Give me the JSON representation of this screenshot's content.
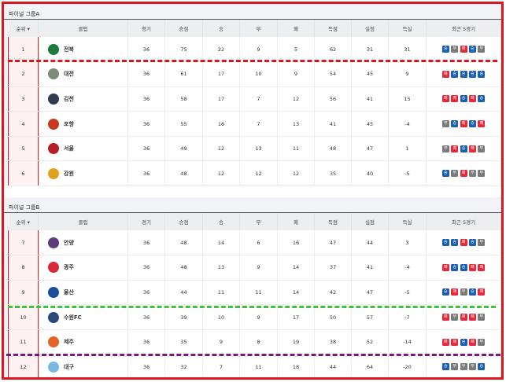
{
  "colors": {
    "frame": "#e0141e",
    "win": "#1a5fb4",
    "loss": "#e5283a",
    "draw": "#7a7a7a",
    "line_red": "#e0141e",
    "line_green": "#3cc43c",
    "line_purple": "#7a1a7a"
  },
  "columns": [
    "순위 ▾",
    "클럽",
    "경기",
    "승점",
    "승",
    "무",
    "패",
    "득점",
    "실점",
    "득실",
    "최근 5경기"
  ],
  "groups": [
    {
      "title": "파이널 그룹A",
      "rows": [
        {
          "rank": "1",
          "club": "전북",
          "logo": "#1d7a3a",
          "gp": "36",
          "pts": "75",
          "w": "22",
          "d": "9",
          "l": "5",
          "gf": "62",
          "ga": "31",
          "gd": "31",
          "form": [
            "승",
            "무",
            "패",
            "승",
            "무"
          ]
        },
        {
          "rank": "2",
          "club": "대전",
          "logo": "#7c8a78",
          "gp": "36",
          "pts": "61",
          "w": "17",
          "d": "10",
          "l": "9",
          "gf": "54",
          "ga": "45",
          "gd": "9",
          "form": [
            "패",
            "승",
            "승",
            "승",
            "승"
          ]
        },
        {
          "rank": "3",
          "club": "김천",
          "logo": "#2e3b52",
          "gp": "36",
          "pts": "58",
          "w": "17",
          "d": "7",
          "l": "12",
          "gf": "56",
          "ga": "41",
          "gd": "15",
          "form": [
            "패",
            "패",
            "승",
            "패",
            "승"
          ]
        },
        {
          "rank": "4",
          "club": "포항",
          "logo": "#c8381e",
          "gp": "36",
          "pts": "55",
          "w": "16",
          "d": "7",
          "l": "13",
          "gf": "41",
          "ga": "45",
          "gd": "-4",
          "form": [
            "무",
            "승",
            "패",
            "승",
            "패"
          ]
        },
        {
          "rank": "5",
          "club": "서울",
          "logo": "#b3202a",
          "gp": "36",
          "pts": "49",
          "w": "12",
          "d": "13",
          "l": "11",
          "gf": "48",
          "ga": "47",
          "gd": "1",
          "form": [
            "무",
            "패",
            "승",
            "패",
            "무"
          ]
        },
        {
          "rank": "6",
          "club": "강원",
          "logo": "#e2a11a",
          "gp": "36",
          "pts": "48",
          "w": "12",
          "d": "12",
          "l": "12",
          "gf": "35",
          "ga": "40",
          "gd": "-5",
          "form": [
            "승",
            "무",
            "패",
            "무",
            "무"
          ]
        }
      ]
    },
    {
      "title": "파이널 그룹B",
      "rows": [
        {
          "rank": "7",
          "club": "안양",
          "logo": "#5b3d7a",
          "gp": "36",
          "pts": "48",
          "w": "14",
          "d": "6",
          "l": "16",
          "gf": "47",
          "ga": "44",
          "gd": "3",
          "form": [
            "승",
            "승",
            "패",
            "승",
            "무"
          ]
        },
        {
          "rank": "8",
          "club": "광주",
          "logo": "#d8283a",
          "gp": "36",
          "pts": "48",
          "w": "13",
          "d": "9",
          "l": "14",
          "gf": "37",
          "ga": "41",
          "gd": "-4",
          "form": [
            "패",
            "승",
            "승",
            "패",
            "패"
          ]
        },
        {
          "rank": "9",
          "club": "울산",
          "logo": "#1b4f9c",
          "gp": "36",
          "pts": "44",
          "w": "11",
          "d": "11",
          "l": "14",
          "gf": "42",
          "ga": "47",
          "gd": "-5",
          "form": [
            "승",
            "패",
            "무",
            "승",
            "패"
          ]
        },
        {
          "rank": "10",
          "club": "수원FC",
          "logo": "#2a4a7a",
          "gp": "36",
          "pts": "39",
          "w": "10",
          "d": "9",
          "l": "17",
          "gf": "50",
          "ga": "57",
          "gd": "-7",
          "form": [
            "패",
            "무",
            "패",
            "패",
            "무"
          ]
        },
        {
          "rank": "11",
          "club": "제주",
          "logo": "#e3632a",
          "gp": "36",
          "pts": "35",
          "w": "9",
          "d": "8",
          "l": "19",
          "gf": "38",
          "ga": "52",
          "gd": "-14",
          "form": [
            "패",
            "패",
            "승",
            "패",
            "무"
          ]
        },
        {
          "rank": "12",
          "club": "대구",
          "logo": "#7ab8e0",
          "gp": "36",
          "pts": "32",
          "w": "7",
          "d": "11",
          "l": "18",
          "gf": "44",
          "ga": "64",
          "gd": "-20",
          "form": [
            "승",
            "무",
            "무",
            "무",
            "승"
          ]
        }
      ]
    }
  ]
}
